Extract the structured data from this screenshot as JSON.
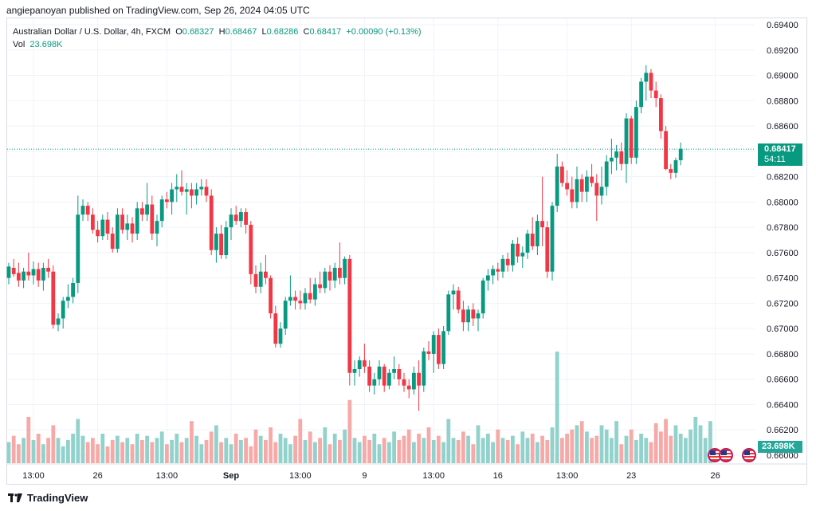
{
  "header": {
    "publisher_line": "angiepanoyan published on TradingView.com, Sep 26, 2024 04:05 UTC"
  },
  "legend": {
    "symbol": "Australian Dollar / U.S. Dollar, 4h, FXCM",
    "open_label": "O",
    "open": "0.68327",
    "high_label": "H",
    "high": "0.68467",
    "low_label": "L",
    "low": "0.68286",
    "close_label": "C",
    "close": "0.68417",
    "change": "+0.00090 (+0.13%)",
    "vol_label": "Vol",
    "vol_value": "23.698K"
  },
  "price_tag": {
    "price": "0.68417",
    "countdown": "54:11"
  },
  "volume_tag": "23.698K",
  "footer": {
    "brand": "TradingView"
  },
  "colors": {
    "up": "#089981",
    "down": "#f23645",
    "vol_up": "#92d2cc",
    "vol_down": "#f7a9a7",
    "grid": "#f0f3fa",
    "text": "#131722"
  },
  "chart_data": {
    "type": "candlestick",
    "title": "Australian Dollar / U.S. Dollar, 4h, FXCM",
    "ylim": [
      0.66,
      0.694
    ],
    "y_ticks": [
      "0.69400",
      "0.69200",
      "0.69000",
      "0.68800",
      "0.68600",
      "0.68400",
      "0.68200",
      "0.68000",
      "0.67800",
      "0.67600",
      "0.67400",
      "0.67200",
      "0.67000",
      "0.66800",
      "0.66600",
      "0.66400",
      "0.66200",
      "0.66000"
    ],
    "x_ticks": [
      {
        "label": "13:00",
        "bar": 5
      },
      {
        "label": "26",
        "bar": 18
      },
      {
        "label": "13:00",
        "bar": 32
      },
      {
        "label": "Sep",
        "bar": 45
      },
      {
        "label": "13:00",
        "bar": 59
      },
      {
        "label": "9",
        "bar": 72
      },
      {
        "label": "13:00",
        "bar": 86
      },
      {
        "label": "16",
        "bar": 99
      },
      {
        "label": "13:00",
        "bar": 113
      },
      {
        "label": "23",
        "bar": 126
      },
      {
        "label": "26",
        "bar": 143
      }
    ],
    "last_price": 0.68417,
    "candles": [
      {
        "o": 0.674,
        "h": 0.6752,
        "l": 0.6735,
        "c": 0.6749
      },
      {
        "o": 0.6748,
        "h": 0.6755,
        "l": 0.6741,
        "c": 0.6743
      },
      {
        "o": 0.6744,
        "h": 0.6752,
        "l": 0.6733,
        "c": 0.6738
      },
      {
        "o": 0.6738,
        "h": 0.6748,
        "l": 0.6732,
        "c": 0.6745
      },
      {
        "o": 0.6745,
        "h": 0.676,
        "l": 0.6738,
        "c": 0.6742
      },
      {
        "o": 0.6742,
        "h": 0.6753,
        "l": 0.6735,
        "c": 0.6747
      },
      {
        "o": 0.6747,
        "h": 0.6752,
        "l": 0.6733,
        "c": 0.6738
      },
      {
        "o": 0.6738,
        "h": 0.6752,
        "l": 0.673,
        "c": 0.6748
      },
      {
        "o": 0.6748,
        "h": 0.6755,
        "l": 0.674,
        "c": 0.6745
      },
      {
        "o": 0.6745,
        "h": 0.675,
        "l": 0.67,
        "c": 0.6703
      },
      {
        "o": 0.6703,
        "h": 0.6712,
        "l": 0.6698,
        "c": 0.6708
      },
      {
        "o": 0.6708,
        "h": 0.6725,
        "l": 0.67,
        "c": 0.6722
      },
      {
        "o": 0.6722,
        "h": 0.6735,
        "l": 0.6716,
        "c": 0.6725
      },
      {
        "o": 0.6725,
        "h": 0.674,
        "l": 0.672,
        "c": 0.6736
      },
      {
        "o": 0.6736,
        "h": 0.6805,
        "l": 0.6728,
        "c": 0.679
      },
      {
        "o": 0.679,
        "h": 0.6802,
        "l": 0.6785,
        "c": 0.6797
      },
      {
        "o": 0.6797,
        "h": 0.68,
        "l": 0.6785,
        "c": 0.679
      },
      {
        "o": 0.679,
        "h": 0.6795,
        "l": 0.6775,
        "c": 0.6778
      },
      {
        "o": 0.6778,
        "h": 0.6785,
        "l": 0.6768,
        "c": 0.6773
      },
      {
        "o": 0.6773,
        "h": 0.679,
        "l": 0.677,
        "c": 0.6786
      },
      {
        "o": 0.6786,
        "h": 0.6792,
        "l": 0.677,
        "c": 0.6775
      },
      {
        "o": 0.6775,
        "h": 0.678,
        "l": 0.676,
        "c": 0.6763
      },
      {
        "o": 0.6763,
        "h": 0.6795,
        "l": 0.676,
        "c": 0.679
      },
      {
        "o": 0.679,
        "h": 0.6795,
        "l": 0.6775,
        "c": 0.6778
      },
      {
        "o": 0.6778,
        "h": 0.679,
        "l": 0.677,
        "c": 0.6783
      },
      {
        "o": 0.6783,
        "h": 0.6788,
        "l": 0.6768,
        "c": 0.6775
      },
      {
        "o": 0.6775,
        "h": 0.68,
        "l": 0.677,
        "c": 0.6795
      },
      {
        "o": 0.6795,
        "h": 0.68,
        "l": 0.6785,
        "c": 0.679
      },
      {
        "o": 0.679,
        "h": 0.6815,
        "l": 0.6785,
        "c": 0.6798
      },
      {
        "o": 0.6798,
        "h": 0.6805,
        "l": 0.677,
        "c": 0.6775
      },
      {
        "o": 0.6775,
        "h": 0.679,
        "l": 0.6765,
        "c": 0.6785
      },
      {
        "o": 0.6785,
        "h": 0.6805,
        "l": 0.678,
        "c": 0.6802
      },
      {
        "o": 0.6802,
        "h": 0.6808,
        "l": 0.6795,
        "c": 0.68
      },
      {
        "o": 0.68,
        "h": 0.6815,
        "l": 0.679,
        "c": 0.681
      },
      {
        "o": 0.681,
        "h": 0.6822,
        "l": 0.68,
        "c": 0.6812
      },
      {
        "o": 0.6812,
        "h": 0.6825,
        "l": 0.6805,
        "c": 0.6808
      },
      {
        "o": 0.6808,
        "h": 0.6815,
        "l": 0.679,
        "c": 0.681
      },
      {
        "o": 0.681,
        "h": 0.6815,
        "l": 0.6795,
        "c": 0.6805
      },
      {
        "o": 0.6805,
        "h": 0.6815,
        "l": 0.6798,
        "c": 0.681
      },
      {
        "o": 0.681,
        "h": 0.6818,
        "l": 0.6805,
        "c": 0.6812
      },
      {
        "o": 0.6812,
        "h": 0.6818,
        "l": 0.68,
        "c": 0.6805
      },
      {
        "o": 0.6805,
        "h": 0.681,
        "l": 0.6758,
        "c": 0.6762
      },
      {
        "o": 0.6762,
        "h": 0.678,
        "l": 0.6752,
        "c": 0.6775
      },
      {
        "o": 0.6775,
        "h": 0.6782,
        "l": 0.6755,
        "c": 0.6758
      },
      {
        "o": 0.6758,
        "h": 0.6785,
        "l": 0.6755,
        "c": 0.678
      },
      {
        "o": 0.678,
        "h": 0.6795,
        "l": 0.677,
        "c": 0.679
      },
      {
        "o": 0.679,
        "h": 0.6797,
        "l": 0.6782,
        "c": 0.6785
      },
      {
        "o": 0.6785,
        "h": 0.6795,
        "l": 0.678,
        "c": 0.6792
      },
      {
        "o": 0.6792,
        "h": 0.6795,
        "l": 0.6775,
        "c": 0.6782
      },
      {
        "o": 0.6782,
        "h": 0.6785,
        "l": 0.6735,
        "c": 0.6743
      },
      {
        "o": 0.6743,
        "h": 0.675,
        "l": 0.6728,
        "c": 0.6733
      },
      {
        "o": 0.6733,
        "h": 0.6752,
        "l": 0.6728,
        "c": 0.6745
      },
      {
        "o": 0.6745,
        "h": 0.6758,
        "l": 0.6735,
        "c": 0.674
      },
      {
        "o": 0.674,
        "h": 0.6742,
        "l": 0.6708,
        "c": 0.6712
      },
      {
        "o": 0.6712,
        "h": 0.6718,
        "l": 0.6685,
        "c": 0.6688
      },
      {
        "o": 0.6688,
        "h": 0.6705,
        "l": 0.6685,
        "c": 0.67
      },
      {
        "o": 0.67,
        "h": 0.6725,
        "l": 0.6695,
        "c": 0.6722
      },
      {
        "o": 0.6722,
        "h": 0.6742,
        "l": 0.6718,
        "c": 0.6725
      },
      {
        "o": 0.6725,
        "h": 0.673,
        "l": 0.6715,
        "c": 0.6722
      },
      {
        "o": 0.6722,
        "h": 0.673,
        "l": 0.6715,
        "c": 0.672
      },
      {
        "o": 0.672,
        "h": 0.6732,
        "l": 0.6715,
        "c": 0.6728
      },
      {
        "o": 0.6728,
        "h": 0.674,
        "l": 0.672,
        "c": 0.6723
      },
      {
        "o": 0.6723,
        "h": 0.674,
        "l": 0.6718,
        "c": 0.6735
      },
      {
        "o": 0.6735,
        "h": 0.6745,
        "l": 0.6728,
        "c": 0.6732
      },
      {
        "o": 0.6732,
        "h": 0.6748,
        "l": 0.6728,
        "c": 0.6745
      },
      {
        "o": 0.6745,
        "h": 0.675,
        "l": 0.673,
        "c": 0.6738
      },
      {
        "o": 0.6738,
        "h": 0.6752,
        "l": 0.6732,
        "c": 0.6748
      },
      {
        "o": 0.6748,
        "h": 0.6768,
        "l": 0.6735,
        "c": 0.674
      },
      {
        "o": 0.674,
        "h": 0.6757,
        "l": 0.6735,
        "c": 0.6755
      },
      {
        "o": 0.6755,
        "h": 0.6758,
        "l": 0.6655,
        "c": 0.6665
      },
      {
        "o": 0.6665,
        "h": 0.6675,
        "l": 0.6655,
        "c": 0.6668
      },
      {
        "o": 0.6668,
        "h": 0.6678,
        "l": 0.6662,
        "c": 0.6675
      },
      {
        "o": 0.6675,
        "h": 0.6688,
        "l": 0.6665,
        "c": 0.667
      },
      {
        "o": 0.667,
        "h": 0.6675,
        "l": 0.665,
        "c": 0.6655
      },
      {
        "o": 0.6655,
        "h": 0.6665,
        "l": 0.6648,
        "c": 0.666
      },
      {
        "o": 0.666,
        "h": 0.6675,
        "l": 0.6655,
        "c": 0.667
      },
      {
        "o": 0.667,
        "h": 0.6672,
        "l": 0.665,
        "c": 0.6655
      },
      {
        "o": 0.6655,
        "h": 0.6668,
        "l": 0.6652,
        "c": 0.6665
      },
      {
        "o": 0.6665,
        "h": 0.6678,
        "l": 0.666,
        "c": 0.6668
      },
      {
        "o": 0.6668,
        "h": 0.6672,
        "l": 0.6655,
        "c": 0.666
      },
      {
        "o": 0.666,
        "h": 0.6665,
        "l": 0.665,
        "c": 0.6655
      },
      {
        "o": 0.6655,
        "h": 0.666,
        "l": 0.6645,
        "c": 0.6652
      },
      {
        "o": 0.6652,
        "h": 0.667,
        "l": 0.6648,
        "c": 0.6665
      },
      {
        "o": 0.6665,
        "h": 0.6675,
        "l": 0.6635,
        "c": 0.6655
      },
      {
        "o": 0.6655,
        "h": 0.6685,
        "l": 0.665,
        "c": 0.6682
      },
      {
        "o": 0.6682,
        "h": 0.669,
        "l": 0.6675,
        "c": 0.668
      },
      {
        "o": 0.668,
        "h": 0.6698,
        "l": 0.6665,
        "c": 0.6695
      },
      {
        "o": 0.6695,
        "h": 0.67,
        "l": 0.6668,
        "c": 0.6672
      },
      {
        "o": 0.6672,
        "h": 0.6702,
        "l": 0.6668,
        "c": 0.6698
      },
      {
        "o": 0.6698,
        "h": 0.673,
        "l": 0.6695,
        "c": 0.6727
      },
      {
        "o": 0.6727,
        "h": 0.6735,
        "l": 0.6715,
        "c": 0.673
      },
      {
        "o": 0.673,
        "h": 0.6733,
        "l": 0.6712,
        "c": 0.6715
      },
      {
        "o": 0.6715,
        "h": 0.6722,
        "l": 0.6698,
        "c": 0.6705
      },
      {
        "o": 0.6705,
        "h": 0.6718,
        "l": 0.6698,
        "c": 0.6715
      },
      {
        "o": 0.6715,
        "h": 0.672,
        "l": 0.6702,
        "c": 0.6708
      },
      {
        "o": 0.6708,
        "h": 0.6715,
        "l": 0.6698,
        "c": 0.6712
      },
      {
        "o": 0.6712,
        "h": 0.674,
        "l": 0.6708,
        "c": 0.6738
      },
      {
        "o": 0.6738,
        "h": 0.6747,
        "l": 0.673,
        "c": 0.6742
      },
      {
        "o": 0.6742,
        "h": 0.675,
        "l": 0.6735,
        "c": 0.6747
      },
      {
        "o": 0.6747,
        "h": 0.6752,
        "l": 0.6738,
        "c": 0.6745
      },
      {
        "o": 0.6745,
        "h": 0.6758,
        "l": 0.674,
        "c": 0.6755
      },
      {
        "o": 0.6755,
        "h": 0.676,
        "l": 0.6745,
        "c": 0.675
      },
      {
        "o": 0.675,
        "h": 0.677,
        "l": 0.6745,
        "c": 0.6767
      },
      {
        "o": 0.6767,
        "h": 0.6772,
        "l": 0.6752,
        "c": 0.6757
      },
      {
        "o": 0.6757,
        "h": 0.6765,
        "l": 0.6748,
        "c": 0.676
      },
      {
        "o": 0.676,
        "h": 0.6778,
        "l": 0.6755,
        "c": 0.6775
      },
      {
        "o": 0.6775,
        "h": 0.6788,
        "l": 0.6762,
        "c": 0.6765
      },
      {
        "o": 0.6765,
        "h": 0.679,
        "l": 0.6758,
        "c": 0.6785
      },
      {
        "o": 0.6785,
        "h": 0.682,
        "l": 0.6765,
        "c": 0.678
      },
      {
        "o": 0.678,
        "h": 0.6785,
        "l": 0.674,
        "c": 0.6745
      },
      {
        "o": 0.6745,
        "h": 0.68,
        "l": 0.6738,
        "c": 0.6797
      },
      {
        "o": 0.6797,
        "h": 0.6838,
        "l": 0.6792,
        "c": 0.6828
      },
      {
        "o": 0.6828,
        "h": 0.6832,
        "l": 0.6812,
        "c": 0.6815
      },
      {
        "o": 0.6815,
        "h": 0.6825,
        "l": 0.6805,
        "c": 0.681
      },
      {
        "o": 0.681,
        "h": 0.682,
        "l": 0.6795,
        "c": 0.68
      },
      {
        "o": 0.68,
        "h": 0.6828,
        "l": 0.6795,
        "c": 0.6818
      },
      {
        "o": 0.6818,
        "h": 0.6822,
        "l": 0.68,
        "c": 0.6808
      },
      {
        "o": 0.6808,
        "h": 0.6825,
        "l": 0.68,
        "c": 0.682
      },
      {
        "o": 0.682,
        "h": 0.683,
        "l": 0.6812,
        "c": 0.6815
      },
      {
        "o": 0.6815,
        "h": 0.6822,
        "l": 0.6785,
        "c": 0.6805
      },
      {
        "o": 0.6805,
        "h": 0.6828,
        "l": 0.6798,
        "c": 0.6812
      },
      {
        "o": 0.6812,
        "h": 0.6837,
        "l": 0.6805,
        "c": 0.6832
      },
      {
        "o": 0.6832,
        "h": 0.685,
        "l": 0.6822,
        "c": 0.6835
      },
      {
        "o": 0.6835,
        "h": 0.6845,
        "l": 0.6825,
        "c": 0.684
      },
      {
        "o": 0.684,
        "h": 0.6847,
        "l": 0.6825,
        "c": 0.683
      },
      {
        "o": 0.683,
        "h": 0.687,
        "l": 0.6815,
        "c": 0.6866
      },
      {
        "o": 0.6866,
        "h": 0.6868,
        "l": 0.683,
        "c": 0.6835
      },
      {
        "o": 0.6835,
        "h": 0.688,
        "l": 0.683,
        "c": 0.6875
      },
      {
        "o": 0.6875,
        "h": 0.6898,
        "l": 0.687,
        "c": 0.6895
      },
      {
        "o": 0.6895,
        "h": 0.6908,
        "l": 0.688,
        "c": 0.6902
      },
      {
        "o": 0.6902,
        "h": 0.6905,
        "l": 0.6882,
        "c": 0.6888
      },
      {
        "o": 0.6888,
        "h": 0.6895,
        "l": 0.6875,
        "c": 0.6882
      },
      {
        "o": 0.6882,
        "h": 0.6885,
        "l": 0.685,
        "c": 0.6856
      },
      {
        "o": 0.6856,
        "h": 0.686,
        "l": 0.6825,
        "c": 0.6826
      },
      {
        "o": 0.6826,
        "h": 0.683,
        "l": 0.6818,
        "c": 0.6823
      },
      {
        "o": 0.6823,
        "h": 0.6835,
        "l": 0.6819,
        "c": 0.6833
      },
      {
        "o": 0.6833,
        "h": 0.6847,
        "l": 0.6829,
        "c": 0.6842
      }
    ],
    "volume": [
      10,
      13,
      9,
      12,
      22,
      11,
      14,
      9,
      12,
      18,
      12,
      8,
      11,
      14,
      21,
      13,
      10,
      12,
      9,
      14,
      8,
      11,
      13,
      10,
      12,
      9,
      14,
      11,
      13,
      10,
      12,
      15,
      9,
      11,
      14,
      10,
      12,
      20,
      13,
      9,
      11,
      15,
      18,
      10,
      12,
      9,
      14,
      11,
      12,
      8,
      16,
      13,
      11,
      17,
      10,
      14,
      12,
      9,
      13,
      21,
      11,
      15,
      10,
      12,
      17,
      9,
      14,
      11,
      16,
      30,
      12,
      10,
      13,
      11,
      14,
      9,
      12,
      10,
      15,
      11,
      13,
      16,
      10,
      14,
      12,
      17,
      11,
      13,
      10,
      21,
      12,
      11,
      15,
      13,
      9,
      18,
      12,
      14,
      10,
      16,
      12,
      11,
      13,
      9,
      15,
      12,
      14,
      10,
      13,
      11,
      17,
      53,
      12,
      14,
      16,
      18,
      20,
      15,
      12,
      13,
      18,
      16,
      12,
      20,
      9,
      13,
      16,
      11,
      14,
      12,
      10,
      19,
      15,
      21,
      13,
      18,
      14,
      12,
      16,
      22,
      18,
      12,
      20
    ]
  }
}
